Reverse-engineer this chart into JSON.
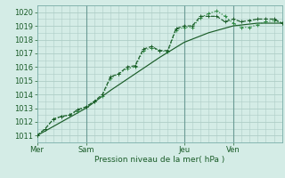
{
  "bg_color": "#d4ece6",
  "grid_color": "#aecdc6",
  "line_color_dark": "#1a5c28",
  "line_color_mid": "#2d8a42",
  "xlabel": "Pression niveau de la mer( hPa )",
  "ylim": [
    1010.5,
    1020.5
  ],
  "yticks": [
    1011,
    1012,
    1013,
    1014,
    1015,
    1016,
    1017,
    1018,
    1019,
    1020
  ],
  "xtick_labels": [
    "Mer",
    "Sam",
    "Jeu",
    "Ven"
  ],
  "xtick_positions": [
    0,
    48,
    144,
    192
  ],
  "xlim": [
    0,
    240
  ],
  "vline_positions": [
    48,
    144,
    192
  ],
  "series1_x": [
    0,
    8,
    16,
    24,
    32,
    40,
    48,
    56,
    64,
    72,
    80,
    88,
    96,
    104,
    112,
    120,
    128,
    136,
    144,
    152,
    160,
    168,
    176,
    184,
    192,
    200,
    208,
    216,
    224,
    232,
    240
  ],
  "series1_y": [
    1011.0,
    1011.5,
    1012.2,
    1012.4,
    1012.5,
    1012.8,
    1013.1,
    1013.5,
    1013.9,
    1015.2,
    1015.5,
    1015.9,
    1016.0,
    1017.2,
    1017.4,
    1017.2,
    1017.1,
    1018.7,
    1018.9,
    1018.9,
    1019.6,
    1019.9,
    1020.1,
    1019.7,
    1019.2,
    1018.9,
    1018.9,
    1019.1,
    1019.3,
    1019.4,
    1019.2
  ],
  "series2_x": [
    0,
    8,
    16,
    24,
    32,
    40,
    48,
    56,
    64,
    72,
    80,
    88,
    96,
    104,
    112,
    120,
    128,
    136,
    144,
    152,
    160,
    168,
    176,
    184,
    192,
    200,
    208,
    216,
    224,
    232,
    240
  ],
  "series2_y": [
    1011.0,
    1011.5,
    1012.2,
    1012.4,
    1012.5,
    1012.9,
    1013.1,
    1013.5,
    1014.0,
    1015.3,
    1015.5,
    1016.0,
    1016.1,
    1017.3,
    1017.5,
    1017.2,
    1017.2,
    1018.8,
    1019.0,
    1019.0,
    1019.7,
    1019.7,
    1019.7,
    1019.3,
    1019.5,
    1019.3,
    1019.4,
    1019.5,
    1019.5,
    1019.5,
    1019.2
  ],
  "series3_x": [
    0,
    24,
    48,
    72,
    96,
    120,
    144,
    168,
    192,
    216,
    240
  ],
  "series3_y": [
    1011.0,
    1012.0,
    1013.0,
    1014.3,
    1015.5,
    1016.7,
    1017.8,
    1018.5,
    1019.0,
    1019.2,
    1019.2
  ],
  "marker_size": 2.5
}
